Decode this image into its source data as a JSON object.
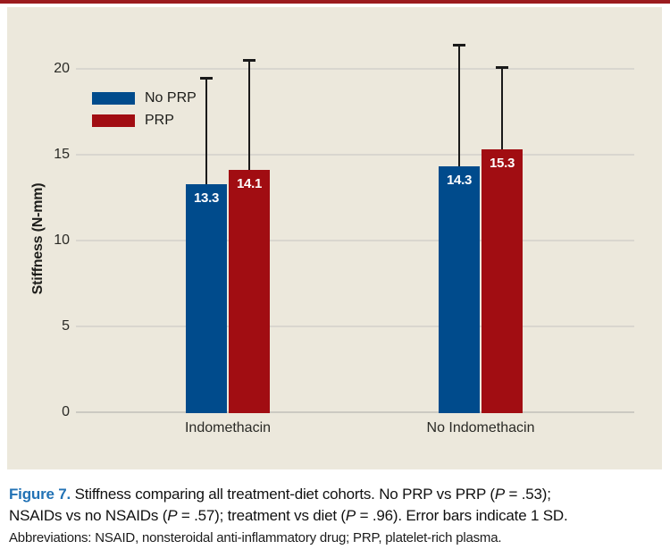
{
  "top_rule": {
    "color": "#9b1b1e"
  },
  "panel": {
    "background": "#ece8dc"
  },
  "colors": {
    "gridline": "#d9d6cf",
    "baseline": "#cbc9c2",
    "tick_text": "#2a2a26",
    "error_bar": "#1a1a1a",
    "value_label_text": "#ffffff"
  },
  "chart_data": {
    "type": "bar",
    "title": "",
    "xlabel": "",
    "ylabel": "Stiffness (N-mm)",
    "ylim": [
      0,
      22
    ],
    "yticks": [
      0,
      5,
      10,
      15,
      20
    ],
    "grid": true,
    "legend_position": "upper-left",
    "categories": [
      "Indomethacin",
      "No Indomethacin"
    ],
    "series": [
      {
        "name": "No PRP",
        "color": "#004b8c",
        "values": [
          13.3,
          14.3
        ],
        "error_bar_tops": [
          19.5,
          21.4
        ]
      },
      {
        "name": "PRP",
        "color": "#a10d12",
        "values": [
          14.1,
          15.3
        ],
        "error_bar_tops": [
          20.5,
          20.1
        ]
      }
    ],
    "value_label_format": "1-decimal",
    "error_note": "Error bars indicate 1 SD"
  },
  "caption": {
    "figure_label_color": "#2272b5",
    "lines": [
      [
        {
          "style": "figure-label",
          "text": "Figure 7."
        },
        {
          "style": "normal",
          "text": " Stiffness comparing all treatment-diet cohorts. No PRP vs PRP ("
        },
        {
          "style": "italic",
          "text": "P"
        },
        {
          "style": "normal",
          "text": " = .53);"
        }
      ],
      [
        {
          "style": "normal",
          "text": "NSAIDs vs no NSAIDs ("
        },
        {
          "style": "italic",
          "text": "P"
        },
        {
          "style": "normal",
          "text": " = .57); treatment vs diet ("
        },
        {
          "style": "italic",
          "text": "P"
        },
        {
          "style": "normal",
          "text": " = .96). Error bars indicate 1 SD."
        }
      ]
    ],
    "abbreviations": "Abbreviations: NSAID, nonsteroidal anti-inflammatory drug; PRP, platelet-rich plasma."
  }
}
